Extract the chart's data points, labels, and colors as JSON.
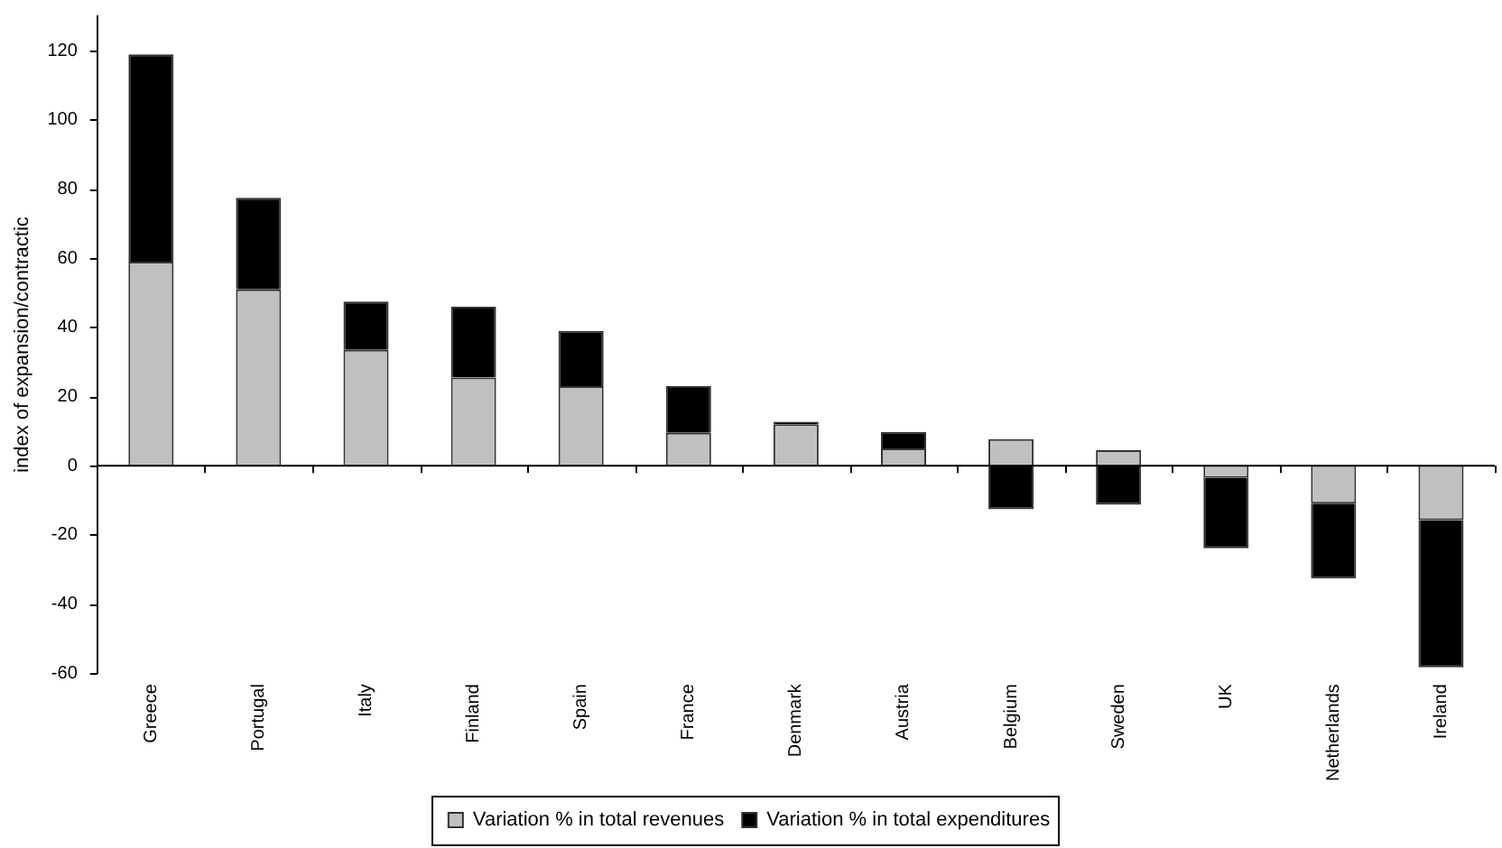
{
  "chart_data": {
    "type": "bar",
    "stacked": true,
    "ylabel": "index of expansion/contractic",
    "categories": [
      "Greece",
      "Portugal",
      "Italy",
      "Finland",
      "Spain",
      "France",
      "Denmark",
      "Austria",
      "Belgium",
      "Sweden",
      "UK",
      "Netherlands",
      "Ireland"
    ],
    "series": [
      {
        "name": "Variation % in total revenues",
        "color": "#c0c0c0",
        "values": [
          59,
          51,
          33.5,
          25.5,
          23,
          9.5,
          12,
          5,
          7.7,
          4.5,
          -3.5,
          -11,
          -15.7
        ]
      },
      {
        "name": "Variation % in total expenditures",
        "color": "#000000",
        "values": [
          60,
          26.5,
          14,
          20.5,
          16,
          13.5,
          0.7,
          4.8,
          -12.6,
          -11.3,
          -20.4,
          -21.6,
          -42.6
        ]
      }
    ],
    "ylim": [
      -60,
      130
    ],
    "yticks": [
      -60,
      -40,
      -20,
      0,
      20,
      40,
      60,
      80,
      100,
      120
    ],
    "legend": "bottom"
  }
}
